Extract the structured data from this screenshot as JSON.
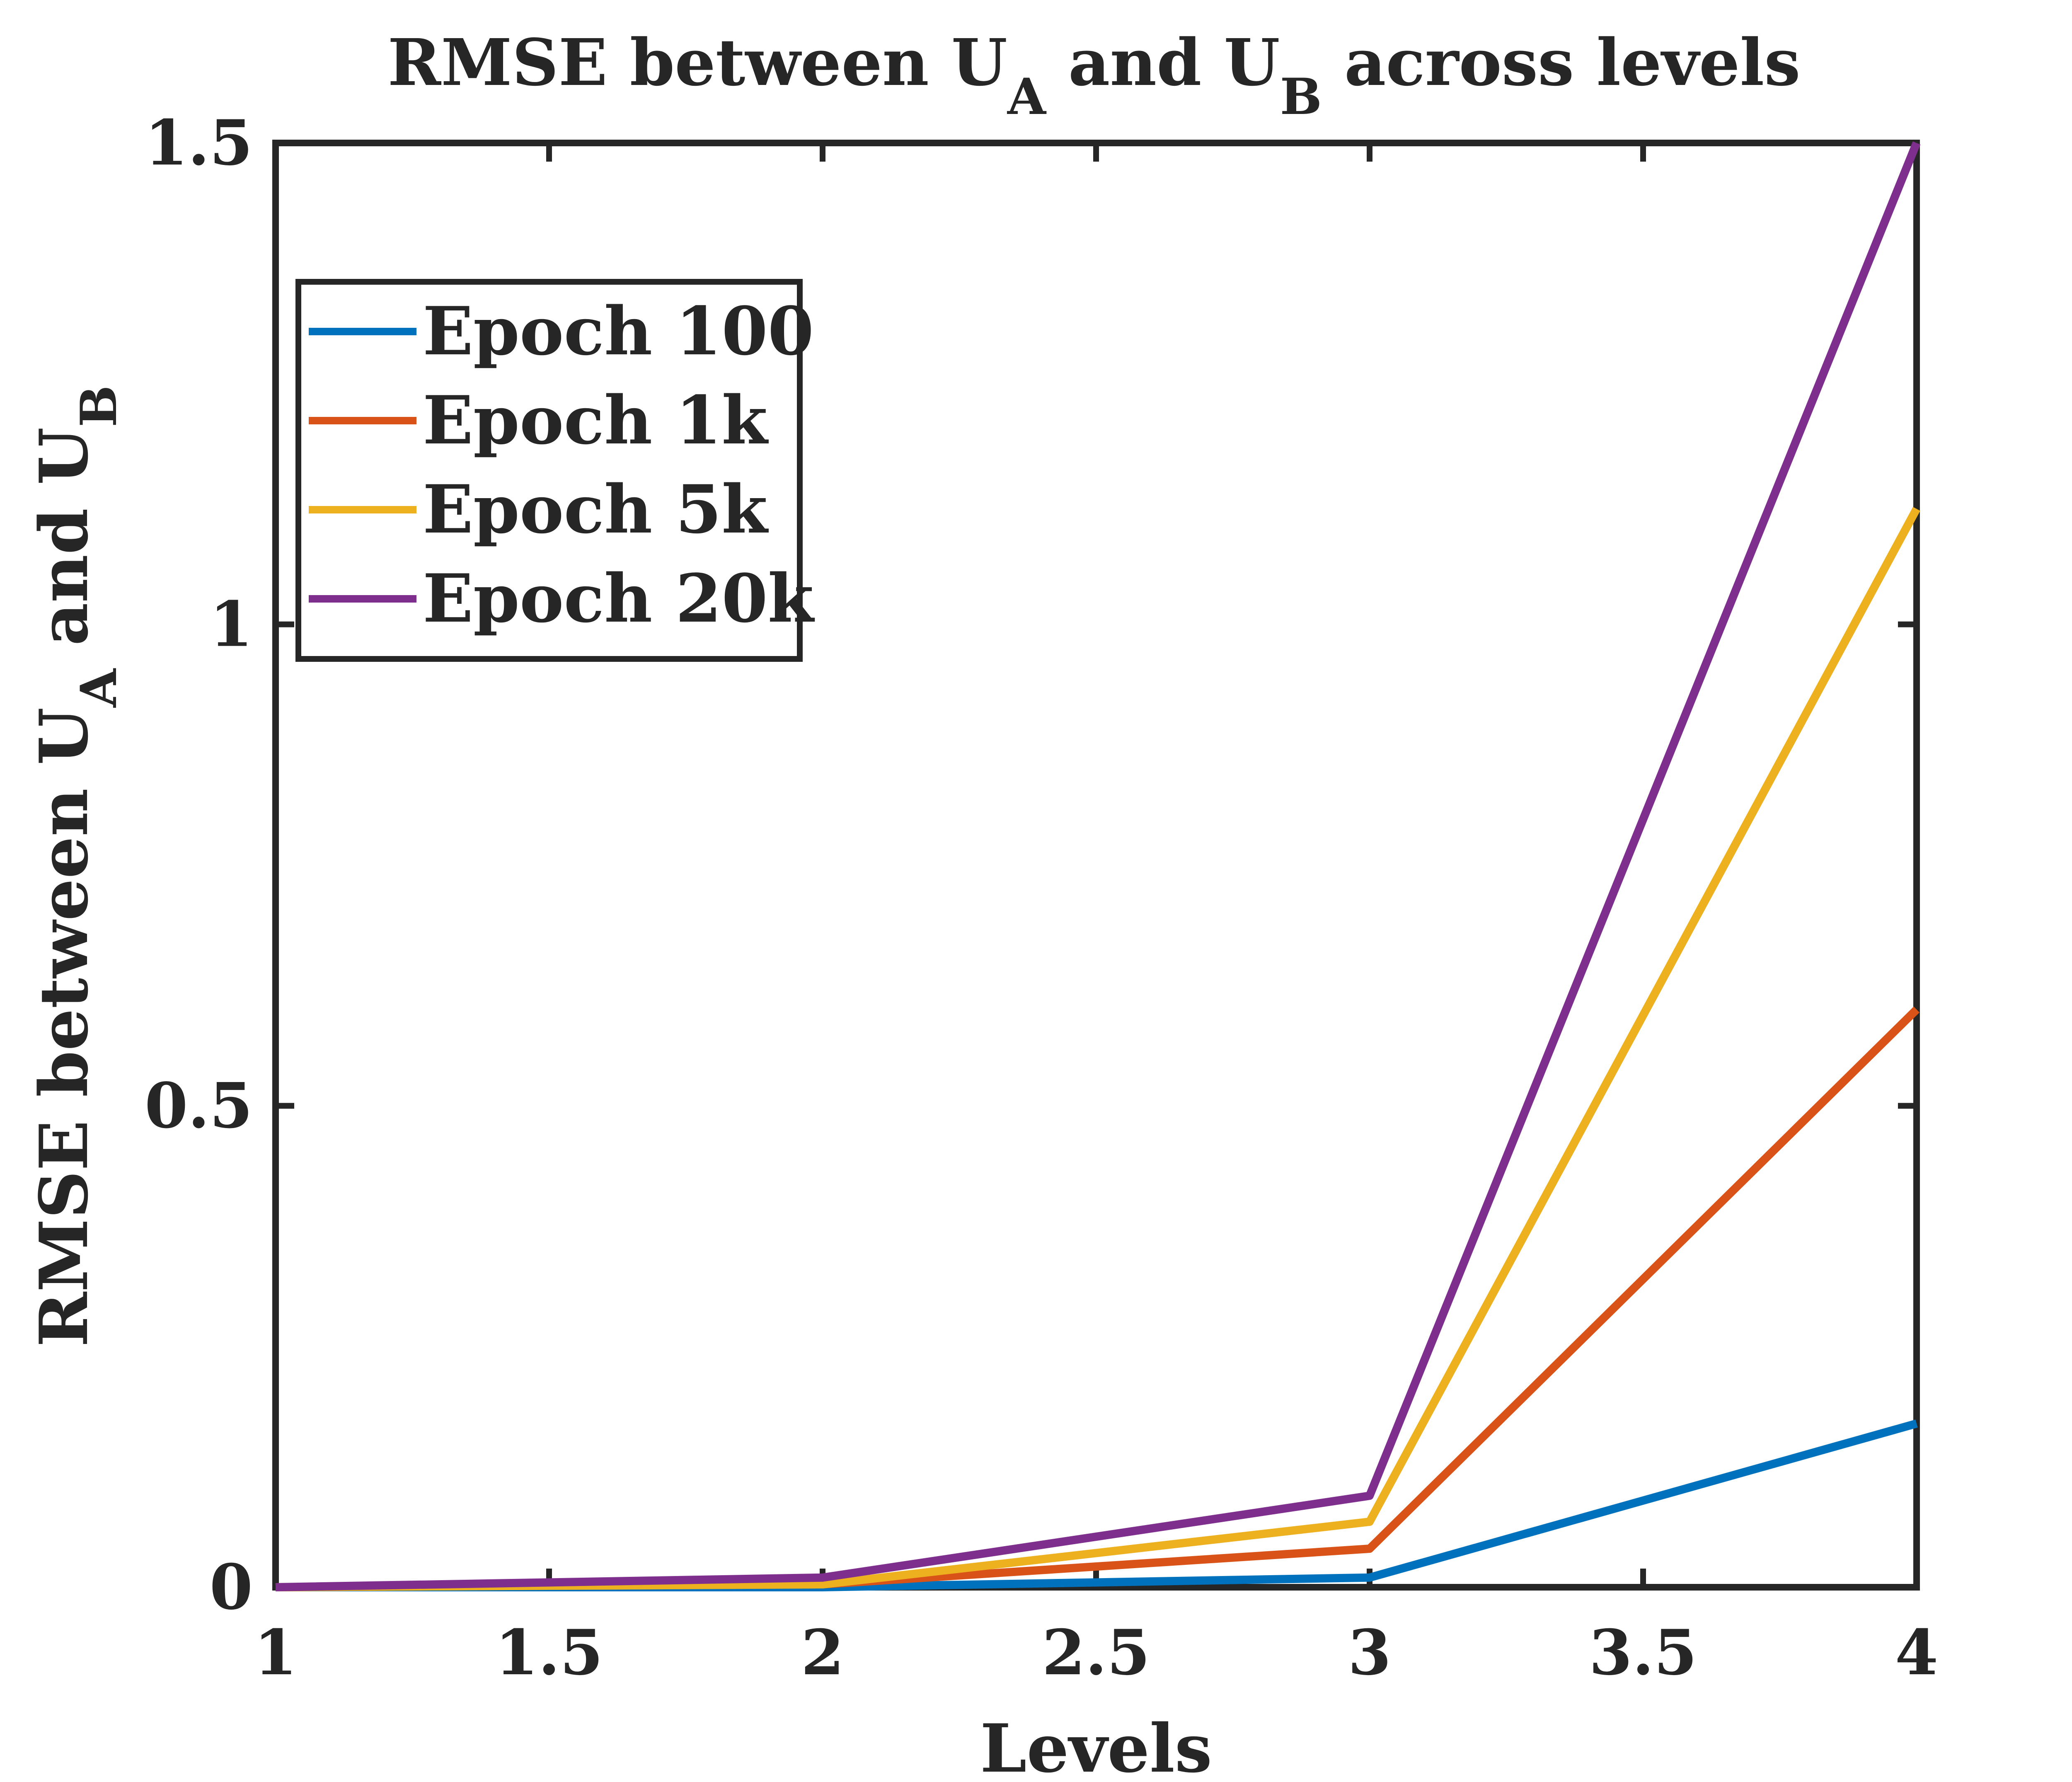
{
  "chart_data": {
    "type": "line",
    "title": {
      "prefix": "RMSE between U",
      "sub1": "A",
      "middle": " and U",
      "sub2": "B",
      "suffix": " across levels"
    },
    "xlabel": "Levels",
    "ylabel": {
      "prefix": "RMSE between U",
      "sub1": "A",
      "middle": " and U",
      "sub2": "B"
    },
    "xlim": [
      1,
      4
    ],
    "ylim": [
      0,
      1.5
    ],
    "xticks": [
      1,
      1.5,
      2,
      2.5,
      3,
      3.5,
      4
    ],
    "xtick_labels": [
      "1",
      "1.5",
      "2",
      "2.5",
      "3",
      "3.5",
      "4"
    ],
    "yticks": [
      0,
      0.5,
      1,
      1.5
    ],
    "ytick_labels": [
      "0",
      "0.5",
      "1",
      "1.5"
    ],
    "grid": false,
    "legend_position": "top-left",
    "x": [
      1,
      2,
      3,
      4
    ],
    "series": [
      {
        "name": "Epoch 100",
        "color": "#0072BD",
        "values": [
          0.0,
          0.0,
          0.01,
          0.17
        ]
      },
      {
        "name": "Epoch 1k",
        "color": "#D95319",
        "values": [
          0.0,
          0.003,
          0.04,
          0.6
        ]
      },
      {
        "name": "Epoch 5k",
        "color": "#EDB120",
        "values": [
          0.0,
          0.003,
          0.068,
          1.12
        ]
      },
      {
        "name": "Epoch 20k",
        "color": "#7E2F8E",
        "values": [
          0.0,
          0.01,
          0.095,
          1.5
        ]
      }
    ]
  }
}
